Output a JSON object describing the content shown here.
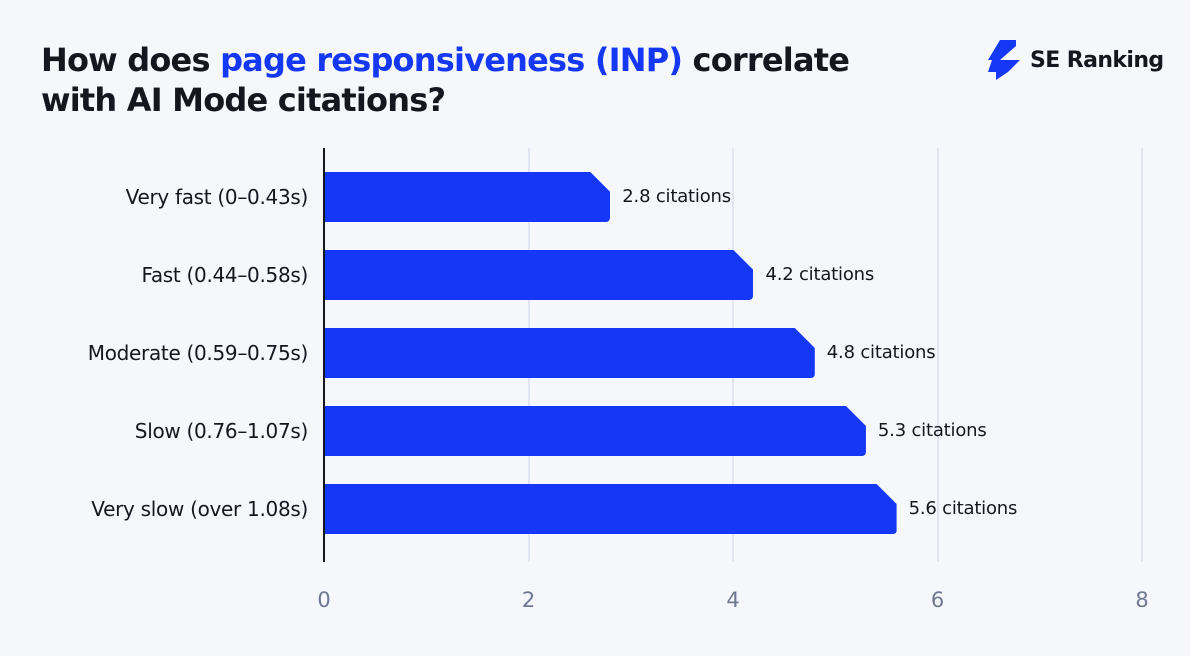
{
  "header": {
    "title_pre": "How does ",
    "title_highlight": "page responsiveness (INP)",
    "title_post": " correlate with AI Mode citations?",
    "logo_text": "SE Ranking"
  },
  "colors": {
    "accent": "#1438f5",
    "background": "#f6f7fb",
    "text": "#15171f",
    "tick": "#6e7891",
    "grid": "#e1e5ef"
  },
  "chart_data": {
    "type": "bar",
    "orientation": "horizontal",
    "title": "How does page responsiveness (INP) correlate with AI Mode citations?",
    "categories": [
      "Very fast (0–0.43s)",
      "Fast (0.44–0.58s)",
      "Moderate (0.59–0.75s)",
      "Slow (0.76–1.07s)",
      "Very slow (over 1.08s)"
    ],
    "values": [
      2.8,
      4.2,
      4.8,
      5.3,
      5.6
    ],
    "value_labels": [
      "2.8 citations",
      "4.2 citations",
      "4.8 citations",
      "5.3 citations",
      "5.6 citations"
    ],
    "xlabel": "",
    "ylabel": "",
    "xlim": [
      0,
      8
    ],
    "xticks": [
      "0",
      "2",
      "4",
      "6",
      "8"
    ],
    "grid": true,
    "legend": null
  }
}
